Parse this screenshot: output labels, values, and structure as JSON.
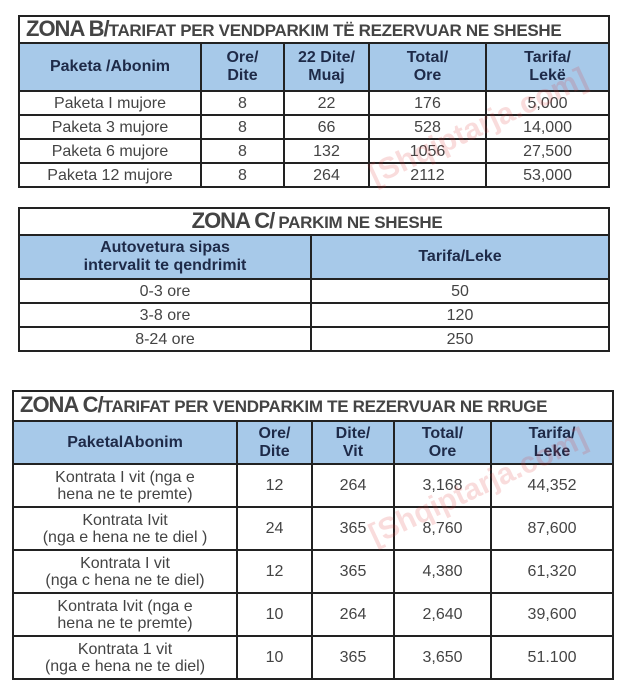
{
  "watermark": "[Shqiptarja.com]",
  "table_b": {
    "title_big": "ZONA B/",
    "title_rest": "TARIFAT  PER VENDPARKIM  TË REZERVUAR  NE SHESHE",
    "headers": [
      "Paketa  /Abonim",
      "Ore/\nDite",
      "22 Dite/\nMuaj",
      "Total/\nOre",
      "Tarifa/\nLekë"
    ],
    "rows": [
      [
        "Paketa  I   mujore",
        "8",
        "22",
        "176",
        "5,000"
      ],
      [
        "Paketa 3 mujore",
        "8",
        "66",
        "528",
        "14,000"
      ],
      [
        "Paketa  6 mujore",
        "8",
        "132",
        "1056",
        "27,500"
      ],
      [
        "Paketa  12 mujore",
        "8",
        "264",
        "2112",
        "53,000"
      ]
    ]
  },
  "table_c1": {
    "title_big": "ZONA C/",
    "title_rest": "PARKIM NE SHESHE",
    "headers": [
      "Autovetura sipas\nintervalit  te qendrimit",
      "Tarifa/Leke"
    ],
    "rows": [
      [
        "0-3 ore",
        "50"
      ],
      [
        "3-8 ore",
        "120"
      ],
      [
        "8-24 ore",
        "250"
      ]
    ]
  },
  "table_c2": {
    "title_big": "ZONA C/",
    "title_rest": "TARIFAT  PER VENDPARKIM  TE REZERVUAR  NE RRUGE",
    "headers": [
      "PaketalAbonim",
      "Ore/\nDite",
      "Dite/\nVit",
      "Total/\nOre",
      "Tarifa/\nLeke"
    ],
    "rows": [
      [
        "Kontrata  I vit (nga e\nhena ne te premte)",
        "12",
        "264",
        "3,168",
        "44,352"
      ],
      [
        "Kontrata  Ivit\n(nga  e hena ne te diel )",
        "24",
        "365",
        "8,760",
        "87,600"
      ],
      [
        "Kontrata  I vit\n(nga c hena ne te diel)",
        "12",
        "365",
        "4,380",
        "61,320"
      ],
      [
        "Kontrata  Ivit (nga e\nhena ne te premte)",
        "10",
        "264",
        "2,640",
        "39,600"
      ],
      [
        "Kontrata  1  vit\n(nga e hena ne te diel)",
        "10",
        "365",
        "3,650",
        "51.100"
      ]
    ]
  }
}
